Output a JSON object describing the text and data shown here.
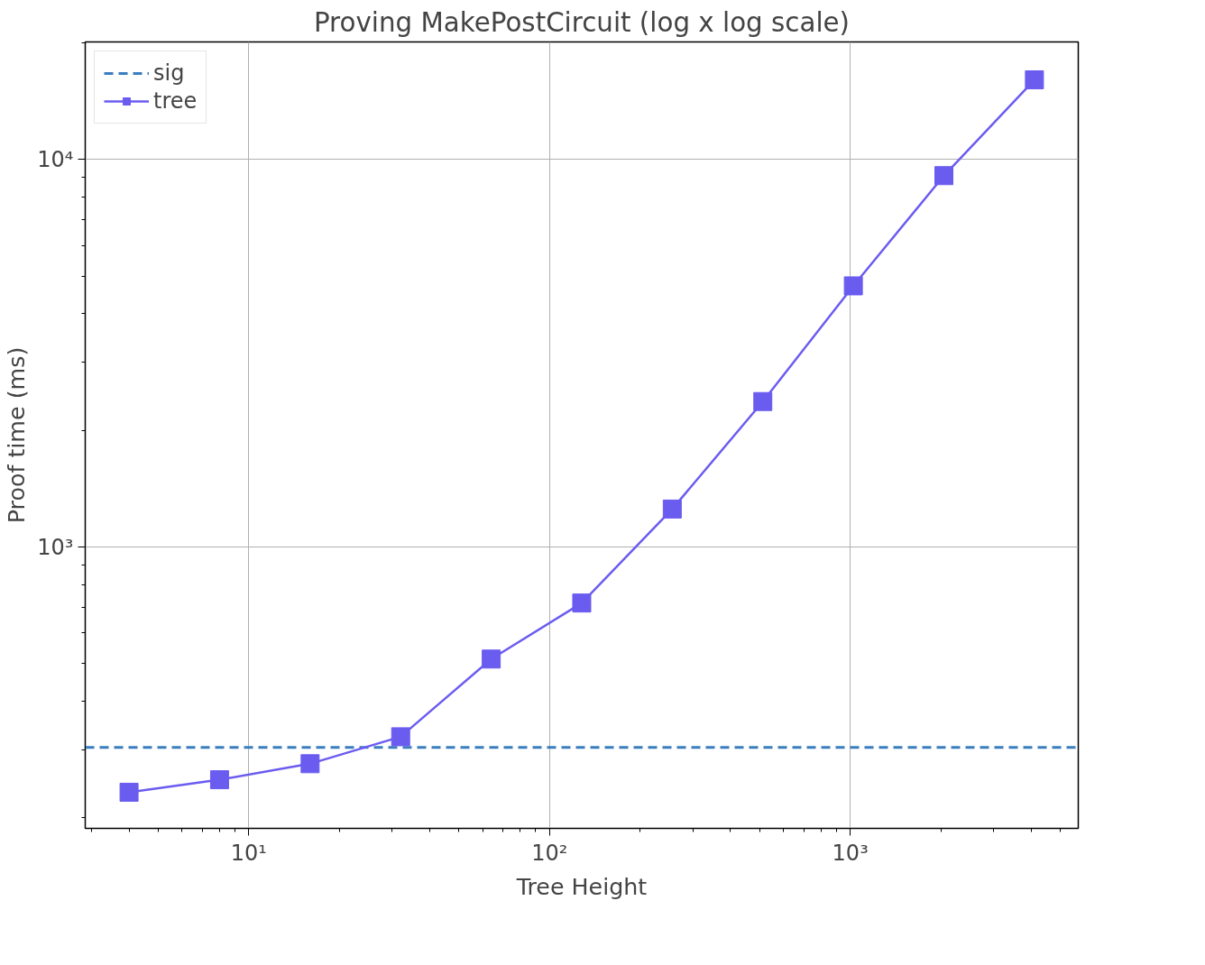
{
  "chart_data": {
    "type": "line",
    "title": "Proving MakePostCircuit (log x log scale)",
    "xlabel": "Tree Height",
    "ylabel": "Proof time (ms)",
    "x": [
      4,
      8,
      16,
      32,
      64,
      128,
      256,
      512,
      1024,
      2048,
      4096
    ],
    "series": [
      {
        "name": "tree",
        "color": "#6b5cf0",
        "values": [
          233,
          251,
          276,
          324,
          514,
          717,
          1253,
          2373,
          4717,
          9078,
          16040
        ]
      }
    ],
    "ref_lines": [
      {
        "axis": "y",
        "value": 304,
        "label": "sig",
        "color": "#3a7ebf",
        "line_style": "dashed"
      }
    ],
    "log": "xy",
    "xlim": [
      2.86,
      5730
    ],
    "ylim": [
      188,
      20090
    ],
    "xticks": [
      {
        "value": 10,
        "label": "10¹"
      },
      {
        "value": 100,
        "label": "10²"
      },
      {
        "value": 1000,
        "label": "10³"
      }
    ],
    "yticks": [
      {
        "value": 1000,
        "label": "10³"
      },
      {
        "value": 10000,
        "label": "10⁴"
      }
    ],
    "grid": true,
    "legend": "top left",
    "marker": "square",
    "line_style": "solid"
  }
}
